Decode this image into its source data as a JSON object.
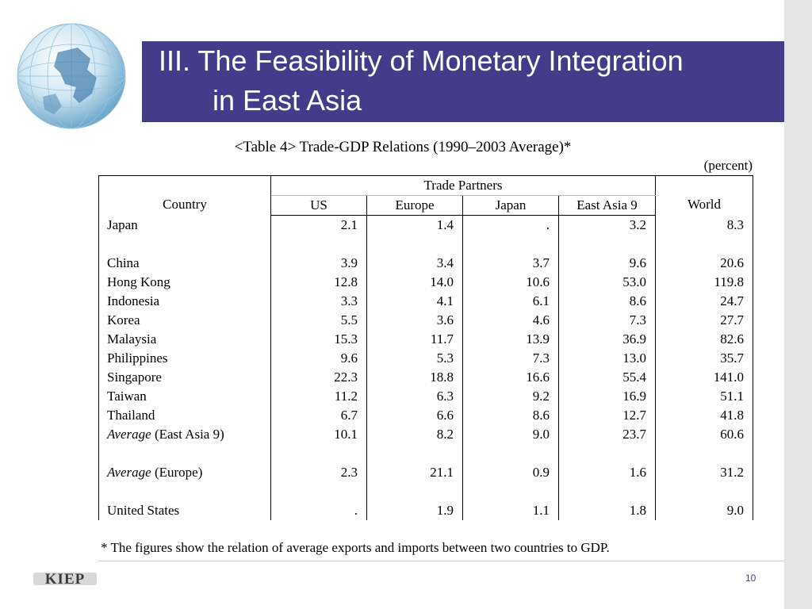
{
  "slide": {
    "title_line1": "III. The Feasibility of Monetary Integration",
    "title_line2": "in East Asia",
    "page_number": "10",
    "logo_text": "KIEP"
  },
  "table": {
    "caption": "<Table 4> Trade-GDP Relations (1990–2003 Average)*",
    "unit": "(percent)",
    "header": {
      "country": "Country",
      "group": "Trade Partners",
      "world": "World",
      "partners": [
        "US",
        "Europe",
        "Japan",
        "East Asia 9"
      ]
    },
    "rows": [
      {
        "name": "Japan",
        "values": [
          "2.1",
          "1.4",
          ".",
          "3.2",
          "8.3"
        ]
      },
      {
        "name": "China",
        "values": [
          "3.9",
          "3.4",
          "3.7",
          "9.6",
          "20.6"
        ]
      },
      {
        "name": "Hong Kong",
        "values": [
          "12.8",
          "14.0",
          "10.6",
          "53.0",
          "119.8"
        ]
      },
      {
        "name": "Indonesia",
        "values": [
          "3.3",
          "4.1",
          "6.1",
          "8.6",
          "24.7"
        ]
      },
      {
        "name": "Korea",
        "values": [
          "5.5",
          "3.6",
          "4.6",
          "7.3",
          "27.7"
        ]
      },
      {
        "name": "Malaysia",
        "values": [
          "15.3",
          "11.7",
          "13.9",
          "36.9",
          "82.6"
        ]
      },
      {
        "name": "Philippines",
        "values": [
          "9.6",
          "5.3",
          "7.3",
          "13.0",
          "35.7"
        ]
      },
      {
        "name": "Singapore",
        "values": [
          "22.3",
          "18.8",
          "16.6",
          "55.4",
          "141.0"
        ]
      },
      {
        "name": "Taiwan",
        "values": [
          "11.2",
          "6.3",
          "9.2",
          "16.9",
          "51.1"
        ]
      },
      {
        "name": "Thailand",
        "values": [
          "6.7",
          "6.6",
          "8.6",
          "12.7",
          "41.8"
        ]
      },
      {
        "name_italic": "Average",
        "name_rest": " (East Asia 9)",
        "values": [
          "10.1",
          "8.2",
          "9.0",
          "23.7",
          "60.6"
        ]
      },
      {
        "name_italic": "Average",
        "name_rest": " (Europe)",
        "values": [
          "2.3",
          "21.1",
          "0.9",
          "1.6",
          "31.2"
        ]
      },
      {
        "name": "United States",
        "values": [
          ".",
          "1.9",
          "1.1",
          "1.8",
          "9.0"
        ]
      }
    ],
    "footnote": "* The figures show the relation of average exports and imports between two countries to GDP."
  }
}
